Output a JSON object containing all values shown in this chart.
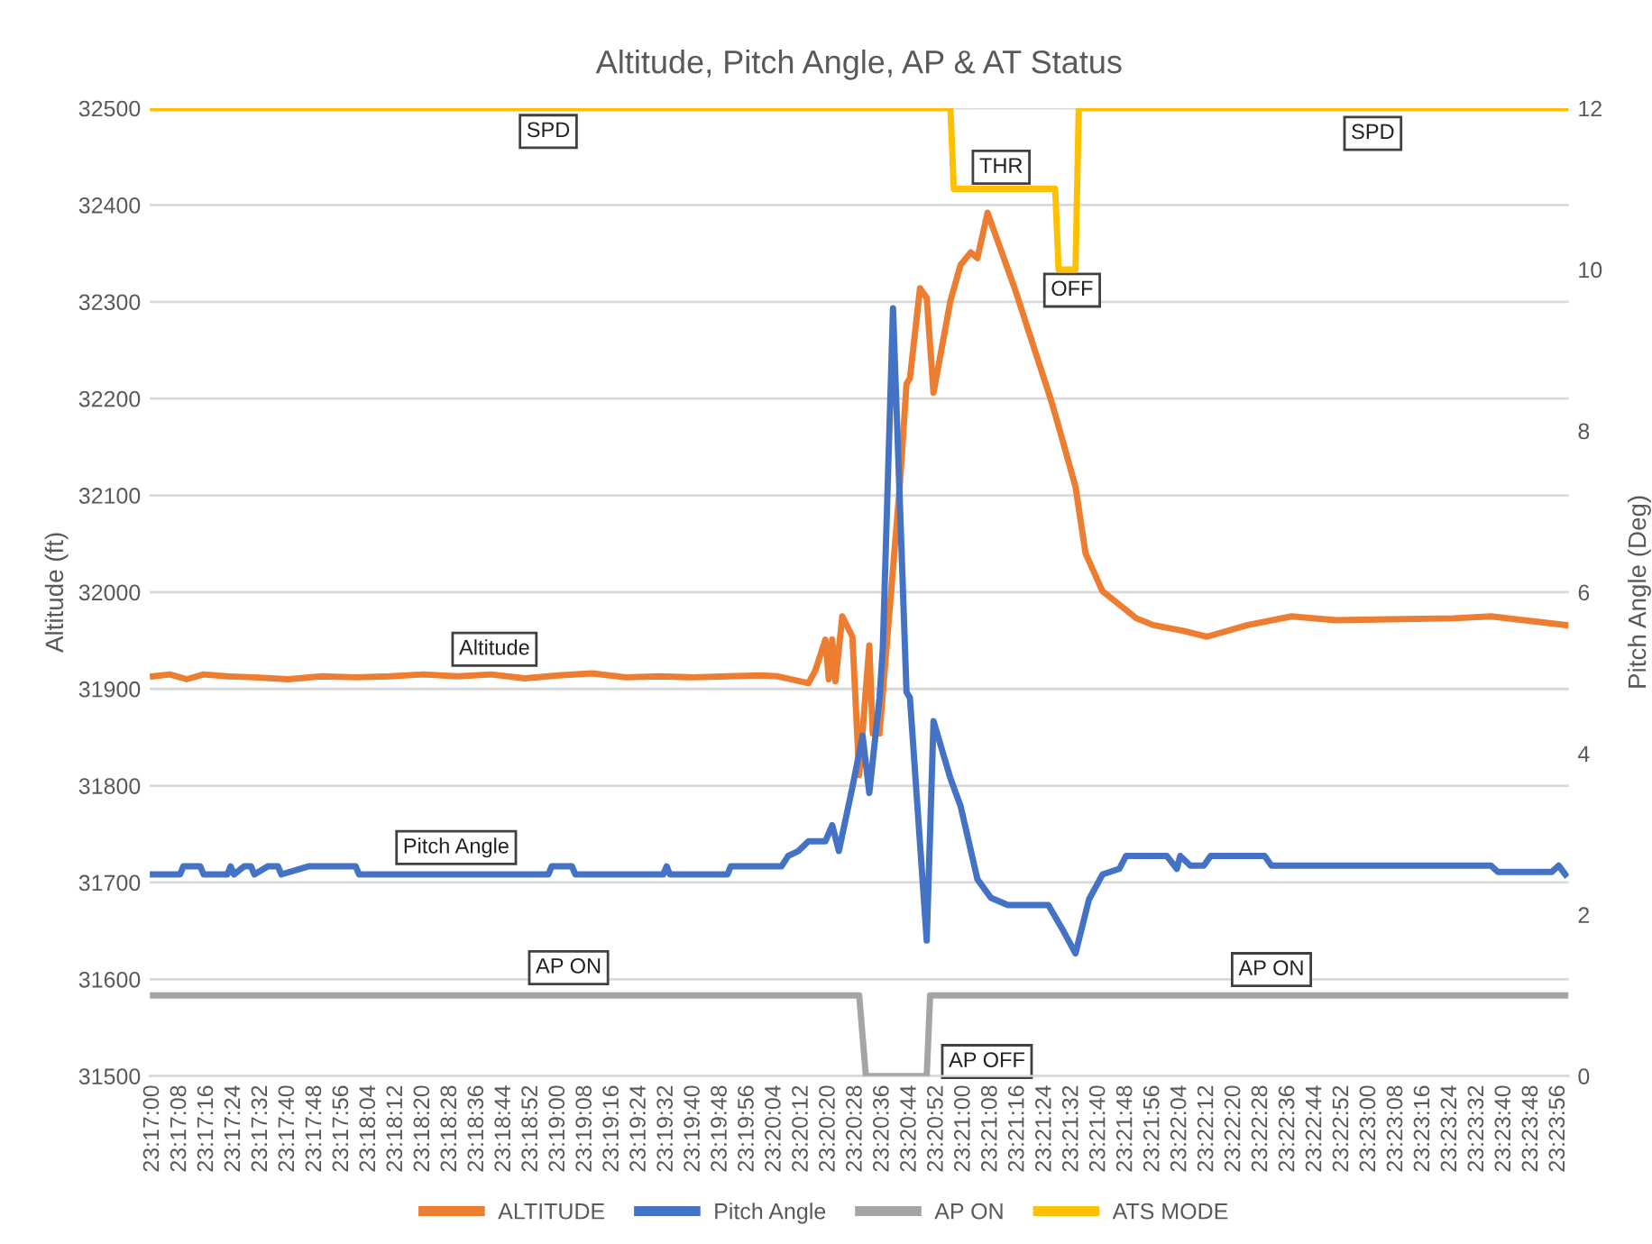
{
  "chart_data": {
    "type": "line",
    "title": "Altitude, Pitch Angle, AP & AT Status",
    "ylabel": "Altitude (ft)",
    "y2label": "Pitch Angle (Deg)",
    "xlim": [
      23.28306,
      23.39972
    ],
    "xticks": [
      {
        "value": 23.28333,
        "label": "23:17:00"
      },
      {
        "value": 23.28556,
        "label": "23:17:08"
      },
      {
        "value": 23.28778,
        "label": "23:17:16"
      },
      {
        "value": 23.29,
        "label": "23:17:24"
      },
      {
        "value": 23.29222,
        "label": "23:17:32"
      },
      {
        "value": 23.29444,
        "label": "23:17:40"
      },
      {
        "value": 23.29667,
        "label": "23:17:48"
      },
      {
        "value": 23.29889,
        "label": "23:17:56"
      },
      {
        "value": 23.30111,
        "label": "23:18:04"
      },
      {
        "value": 23.30333,
        "label": "23:18:12"
      },
      {
        "value": 23.30556,
        "label": "23:18:20"
      },
      {
        "value": 23.30778,
        "label": "23:18:28"
      },
      {
        "value": 23.31,
        "label": "23:18:36"
      },
      {
        "value": 23.31222,
        "label": "23:18:44"
      },
      {
        "value": 23.31444,
        "label": "23:18:52"
      },
      {
        "value": 23.31667,
        "label": "23:19:00"
      },
      {
        "value": 23.31889,
        "label": "23:19:08"
      },
      {
        "value": 23.32111,
        "label": "23:19:16"
      },
      {
        "value": 23.32333,
        "label": "23:19:24"
      },
      {
        "value": 23.32556,
        "label": "23:19:32"
      },
      {
        "value": 23.32778,
        "label": "23:19:40"
      },
      {
        "value": 23.33,
        "label": "23:19:48"
      },
      {
        "value": 23.33222,
        "label": "23:19:56"
      },
      {
        "value": 23.33444,
        "label": "23:20:04"
      },
      {
        "value": 23.33667,
        "label": "23:20:12"
      },
      {
        "value": 23.33889,
        "label": "23:20:20"
      },
      {
        "value": 23.34111,
        "label": "23:20:28"
      },
      {
        "value": 23.34333,
        "label": "23:20:36"
      },
      {
        "value": 23.34556,
        "label": "23:20:44"
      },
      {
        "value": 23.34778,
        "label": "23:20:52"
      },
      {
        "value": 23.35,
        "label": "23:21:00"
      },
      {
        "value": 23.35222,
        "label": "23:21:08"
      },
      {
        "value": 23.35444,
        "label": "23:21:16"
      },
      {
        "value": 23.35667,
        "label": "23:21:24"
      },
      {
        "value": 23.35889,
        "label": "23:21:32"
      },
      {
        "value": 23.36111,
        "label": "23:21:40"
      },
      {
        "value": 23.36333,
        "label": "23:21:48"
      },
      {
        "value": 23.36556,
        "label": "23:21:56"
      },
      {
        "value": 23.36778,
        "label": "23:22:04"
      },
      {
        "value": 23.37,
        "label": "23:22:12"
      },
      {
        "value": 23.37222,
        "label": "23:22:20"
      },
      {
        "value": 23.37444,
        "label": "23:22:28"
      },
      {
        "value": 23.37667,
        "label": "23:22:36"
      },
      {
        "value": 23.37889,
        "label": "23:22:44"
      },
      {
        "value": 23.38111,
        "label": "23:22:52"
      },
      {
        "value": 23.38333,
        "label": "23:23:00"
      },
      {
        "value": 23.38556,
        "label": "23:23:08"
      },
      {
        "value": 23.38778,
        "label": "23:23:16"
      },
      {
        "value": 23.39,
        "label": "23:23:24"
      },
      {
        "value": 23.39222,
        "label": "23:23:32"
      },
      {
        "value": 23.39444,
        "label": "23:23:40"
      },
      {
        "value": 23.39667,
        "label": "23:23:48"
      },
      {
        "value": 23.39889,
        "label": "23:23:56"
      }
    ],
    "ylim": [
      31500,
      32500
    ],
    "yticks": [
      31500,
      31600,
      31700,
      31800,
      31900,
      32000,
      32100,
      32200,
      32300,
      32400,
      32500
    ],
    "y2lim": [
      0,
      12
    ],
    "y2ticks": [
      0,
      2,
      4,
      6,
      8,
      10,
      12
    ],
    "grid": "y",
    "legend": "bottom",
    "marker": "none",
    "line_style": "solid",
    "series": [
      {
        "name": "ALTITUDE",
        "color": "#ed7d31",
        "x": [
          23.28333,
          23.28472,
          23.28611,
          23.2875,
          23.28944,
          23.29167,
          23.29444,
          23.29722,
          23.3,
          23.30278,
          23.30556,
          23.30833,
          23.31111,
          23.31389,
          23.31667,
          23.31944,
          23.32222,
          23.325,
          23.32778,
          23.33056,
          23.33333,
          23.33472,
          23.33722,
          23.33778,
          23.33861,
          23.33889,
          23.33917,
          23.33944,
          23.34,
          23.34083,
          23.34139,
          23.34222,
          23.3425,
          23.34306,
          23.34472,
          23.34528,
          23.34556,
          23.34639,
          23.34694,
          23.3475,
          23.34889,
          23.34972,
          23.35056,
          23.35111,
          23.35194,
          23.35417,
          23.35722,
          23.35806,
          23.35917,
          23.36,
          23.36139,
          23.36417,
          23.36556,
          23.36806,
          23.37,
          23.37333,
          23.37694,
          23.38056,
          23.39028,
          23.39333,
          23.39944
        ],
        "values": [
          31913,
          31915,
          31910,
          31915,
          31913,
          31912,
          31910,
          31913,
          31912,
          31913,
          31915,
          31913,
          31915,
          31911,
          31914,
          31916,
          31912,
          31913,
          31912,
          31913,
          31914,
          31913,
          31906,
          31919,
          31951,
          31910,
          31951,
          31908,
          31975,
          31954,
          31811,
          31945,
          31854,
          31854,
          32109,
          32215,
          32221,
          32314,
          32304,
          32206,
          32301,
          32338,
          32351,
          32345,
          32392,
          32314,
          32196,
          32159,
          32109,
          32040,
          32001,
          31973,
          31966,
          31960,
          31954,
          31966,
          31975,
          31971,
          31973,
          31975,
          31966
        ]
      },
      {
        "name": "Pitch Angle",
        "color": "#4472c4",
        "axis": "y2",
        "x": [
          23.28333,
          23.28556,
          23.28583,
          23.28722,
          23.2875,
          23.28944,
          23.28972,
          23.29,
          23.29083,
          23.29139,
          23.29167,
          23.29278,
          23.29361,
          23.29389,
          23.29611,
          23.3,
          23.30028,
          23.31583,
          23.31611,
          23.31778,
          23.31806,
          23.32528,
          23.32556,
          23.32583,
          23.33056,
          23.33083,
          23.335,
          23.33556,
          23.33639,
          23.33722,
          23.33861,
          23.33917,
          23.33972,
          23.34083,
          23.34167,
          23.34222,
          23.34306,
          23.34333,
          23.34417,
          23.34528,
          23.34556,
          23.34694,
          23.3475,
          23.34889,
          23.34972,
          23.35111,
          23.35222,
          23.35361,
          23.35694,
          23.35806,
          23.35917,
          23.36028,
          23.36139,
          23.36278,
          23.36333,
          23.36667,
          23.3675,
          23.36778,
          23.36861,
          23.36972,
          23.37028,
          23.37472,
          23.37528,
          23.39333,
          23.39389,
          23.39833,
          23.39889,
          23.39944
        ],
        "values": [
          2.5,
          2.5,
          2.6,
          2.6,
          2.5,
          2.5,
          2.6,
          2.5,
          2.6,
          2.6,
          2.5,
          2.6,
          2.6,
          2.5,
          2.6,
          2.6,
          2.5,
          2.5,
          2.6,
          2.6,
          2.5,
          2.5,
          2.6,
          2.5,
          2.5,
          2.6,
          2.6,
          2.73,
          2.79,
          2.91,
          2.91,
          3.11,
          2.79,
          3.58,
          4.22,
          3.51,
          4.69,
          5.3,
          9.52,
          4.76,
          4.69,
          1.68,
          4.4,
          3.69,
          3.35,
          2.44,
          2.21,
          2.12,
          2.12,
          1.83,
          1.52,
          2.19,
          2.5,
          2.57,
          2.73,
          2.73,
          2.57,
          2.73,
          2.61,
          2.61,
          2.73,
          2.73,
          2.61,
          2.61,
          2.53,
          2.53,
          2.61,
          2.5
        ]
      },
      {
        "name": "AP ON",
        "color": "#a5a5a5",
        "axis": "y2",
        "x": [
          23.28333,
          23.34139,
          23.34194,
          23.34694,
          23.34722,
          23.39944
        ],
        "values": [
          1,
          1,
          0,
          0,
          1,
          1
        ]
      },
      {
        "name": "ATS MODE",
        "color": "#ffc000",
        "axis": "y2",
        "x": [
          23.28333,
          23.34889,
          23.34917,
          23.3575,
          23.35778,
          23.35917,
          23.35944,
          23.39944
        ],
        "values": [
          12,
          12,
          11,
          11,
          10,
          10,
          12,
          12
        ]
      }
    ],
    "annotations": [
      {
        "text": "SPD",
        "x": 23.31583,
        "y": 32476
      },
      {
        "text": "THR",
        "x": 23.35306,
        "y": 32439
      },
      {
        "text": "OFF",
        "x": 23.35889,
        "y": 32312
      },
      {
        "text": "SPD",
        "x": 23.38361,
        "y": 32474
      },
      "Altitude",
      "Pitch Angle",
      {
        "text": "AP ON",
        "x": 23.3175,
        "y": 31612
      },
      "AP OFF",
      {
        "text": "AP ON",
        "x": 23.37528,
        "y": 31610
      }
    ]
  }
}
